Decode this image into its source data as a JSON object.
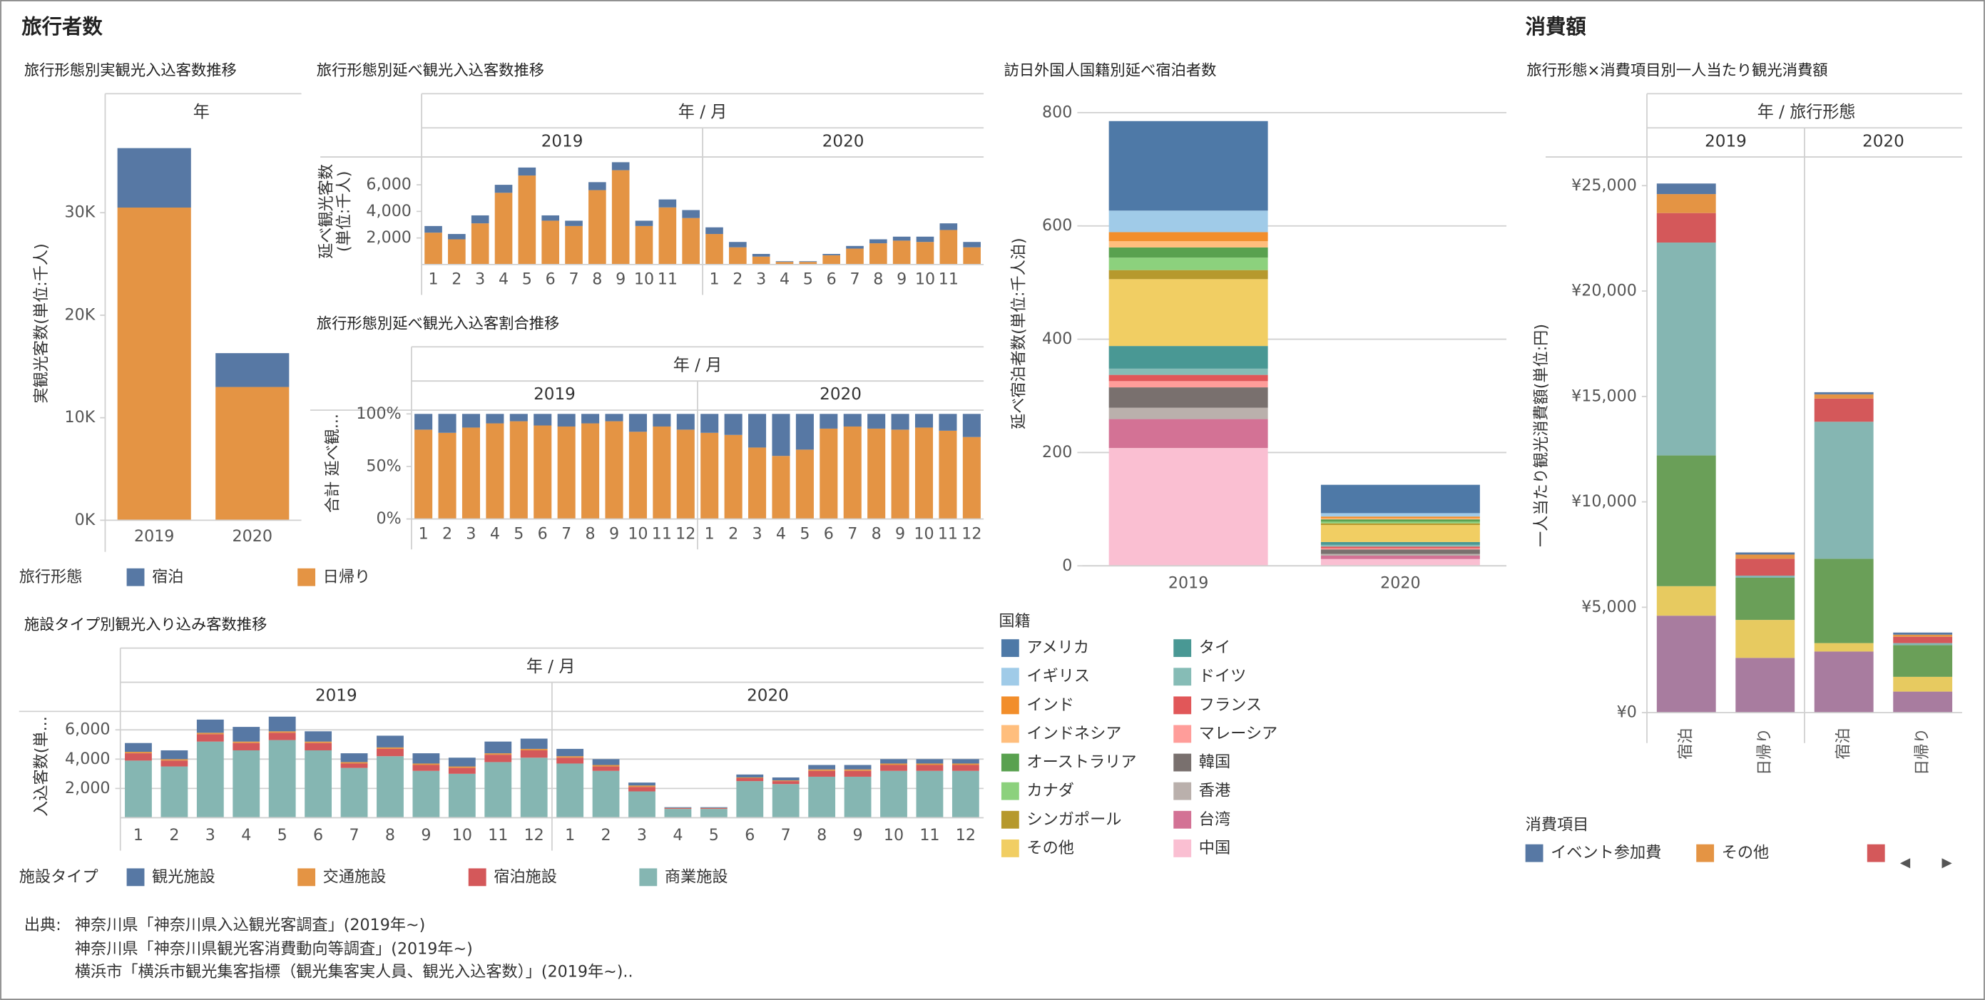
{
  "sections": [
    "旅行者数",
    "消費額"
  ],
  "source": {
    "label": "出典:",
    "lines": [
      "神奈川県「神奈川県入込観光客調査」(2019年~)",
      "神奈川県「神奈川県観光客消費動向等調査」(2019年~)",
      "横浜市「横浜市観光集客指標（観光集客実人員、観光入込客数）」(2019年~).."
    ]
  },
  "chart_data": [
    {
      "type": "bar",
      "stacked": true,
      "title": "旅行形態別実観光入込客数推移",
      "header": "年",
      "y_label": "実観光客数(単位:千人)",
      "categories": [
        "2019",
        "2020"
      ],
      "legend_title": "旅行形態",
      "series": [
        {
          "name": "宿泊",
          "color": "#5778a4",
          "values": [
            5800,
            3300
          ]
        },
        {
          "name": "日帰り",
          "color": "#e49444",
          "values": [
            30500,
            13000
          ]
        }
      ],
      "ylim": [
        0,
        38400
      ],
      "yticks": [
        {
          "value": 0,
          "label": "0K"
        },
        {
          "value": 10000,
          "label": "10K"
        },
        {
          "value": 20000,
          "label": "20K"
        },
        {
          "value": 30000,
          "label": "30K"
        }
      ]
    },
    {
      "type": "bar",
      "stacked": true,
      "title": "旅行形態別延べ観光入込客数推移",
      "header": "年 / 月",
      "y_label": [
        "延べ観光客数",
        "(単位:千人)"
      ],
      "groups": [
        "2019",
        "2020"
      ],
      "categories": [
        "1",
        "2",
        "3",
        "4",
        "5",
        "6",
        "7",
        "8",
        "9",
        "10",
        "11",
        null,
        "1",
        "2",
        "3",
        "4",
        "5",
        "6",
        "7",
        "8",
        "9",
        "10",
        "11",
        null
      ],
      "series": [
        {
          "name": "宿泊",
          "color": "#5778a4",
          "values": [
            500,
            400,
            600,
            600,
            600,
            400,
            400,
            600,
            600,
            400,
            600,
            600,
            500,
            400,
            200,
            50,
            50,
            100,
            200,
            300,
            300,
            400,
            500,
            400
          ]
        },
        {
          "name": "日帰り",
          "color": "#e49444",
          "values": [
            2400,
            1900,
            3100,
            5400,
            6700,
            3300,
            2900,
            5600,
            7100,
            2900,
            4300,
            3500,
            2300,
            1300,
            600,
            200,
            200,
            700,
            1200,
            1600,
            1800,
            1700,
            2600,
            1300
          ]
        }
      ],
      "ylim": [
        0,
        8000
      ],
      "yticks": [
        {
          "value": 2000,
          "label": "2,000"
        },
        {
          "value": 4000,
          "label": "4,000"
        },
        {
          "value": 6000,
          "label": "6,000"
        }
      ]
    },
    {
      "type": "bar",
      "stacked": true,
      "title": "旅行形態別延べ観光入込客割合推移",
      "header": "年 / 月",
      "y_label": "合計 延べ観...",
      "groups": [
        "2019",
        "2020"
      ],
      "categories": [
        "1",
        "2",
        "3",
        "4",
        "5",
        "6",
        "7",
        "8",
        "9",
        "10",
        "11",
        "12",
        "1",
        "2",
        "3",
        "4",
        "5",
        "6",
        "7",
        "8",
        "9",
        "10",
        "11",
        "12"
      ],
      "series": [
        {
          "name": "宿泊",
          "color": "#5778a4",
          "values": [
            15,
            18,
            13,
            9,
            7,
            11,
            12,
            9,
            7,
            17,
            12,
            15,
            18,
            20,
            32,
            40,
            34,
            14,
            12,
            14,
            15,
            13,
            16,
            22
          ]
        },
        {
          "name": "日帰り",
          "color": "#e49444",
          "values": [
            85,
            82,
            87,
            91,
            93,
            89,
            88,
            91,
            93,
            83,
            88,
            85,
            82,
            80,
            68,
            60,
            66,
            86,
            88,
            86,
            85,
            87,
            84,
            78
          ]
        }
      ],
      "ylim": [
        0,
        106
      ],
      "yticks": [
        {
          "value": 0,
          "label": "0%"
        },
        {
          "value": 50,
          "label": "50%"
        },
        {
          "value": 100,
          "label": "100%"
        }
      ]
    },
    {
      "type": "bar",
      "stacked": true,
      "title": "施設タイプ別観光入り込み客数推移",
      "header": "年 / 月",
      "y_label": "入込客数(単...",
      "groups": [
        "2019",
        "2020"
      ],
      "categories": [
        "1",
        "2",
        "3",
        "4",
        "5",
        "6",
        "7",
        "8",
        "9",
        "10",
        "11",
        "12",
        "1",
        "2",
        "3",
        "4",
        "5",
        "6",
        "7",
        "8",
        "9",
        "10",
        "11",
        "12"
      ],
      "legend_title": "施設タイプ",
      "series": [
        {
          "name": "観光施設",
          "color": "#5778a4",
          "values": [
            600,
            600,
            900,
            1000,
            1000,
            700,
            600,
            800,
            700,
            600,
            800,
            700,
            500,
            400,
            200,
            50,
            50,
            200,
            200,
            300,
            300,
            300,
            300,
            300
          ]
        },
        {
          "name": "交通施設",
          "color": "#e49444",
          "values": [
            100,
            100,
            100,
            100,
            100,
            100,
            100,
            100,
            100,
            100,
            100,
            100,
            100,
            100,
            100,
            20,
            20,
            50,
            50,
            100,
            100,
            100,
            100,
            100
          ]
        },
        {
          "name": "宿泊施設",
          "color": "#d4585a",
          "values": [
            500,
            400,
            500,
            500,
            500,
            500,
            300,
            500,
            400,
            400,
            500,
            500,
            400,
            300,
            300,
            50,
            50,
            200,
            200,
            400,
            400,
            400,
            400,
            400
          ]
        },
        {
          "name": "商業施設",
          "color": "#85b6b2",
          "values": [
            3900,
            3500,
            5200,
            4600,
            5300,
            4600,
            3400,
            4200,
            3200,
            3000,
            3800,
            4100,
            3700,
            3200,
            1800,
            600,
            600,
            2500,
            2300,
            2800,
            2800,
            3200,
            3200,
            3200
          ]
        }
      ],
      "ylim": [
        0,
        7000
      ],
      "yticks": [
        {
          "value": 2000,
          "label": "2,000"
        },
        {
          "value": 4000,
          "label": "4,000"
        },
        {
          "value": 6000,
          "label": "6,000"
        }
      ],
      "grid": true
    },
    {
      "type": "bar",
      "stacked": true,
      "title": "訪日外国人国籍別延べ宿泊者数",
      "y_label": "延べ宿泊者数(単位:千人泊)",
      "categories": [
        "2019",
        "2020"
      ],
      "legend_title": "国籍",
      "series": [
        {
          "name": "アメリカ",
          "color": "#4e79a7",
          "values": [
            158,
            50
          ]
        },
        {
          "name": "イギリス",
          "color": "#a0cbe8",
          "values": [
            38,
            6
          ]
        },
        {
          "name": "インド",
          "color": "#f28e2b",
          "values": [
            16,
            3
          ]
        },
        {
          "name": "インドネシア",
          "color": "#ffbe7d",
          "values": [
            11,
            2
          ]
        },
        {
          "name": "オーストラリア",
          "color": "#59a14f",
          "values": [
            18,
            4
          ]
        },
        {
          "name": "カナダ",
          "color": "#8cd17d",
          "values": [
            22,
            3
          ]
        },
        {
          "name": "シンガポール",
          "color": "#b6992d",
          "values": [
            16,
            3
          ]
        },
        {
          "name": "その他",
          "color": "#f1ce63",
          "values": [
            118,
            30
          ]
        },
        {
          "name": "タイ",
          "color": "#499894",
          "values": [
            40,
            5
          ]
        },
        {
          "name": "ドイツ",
          "color": "#86bcb6",
          "values": [
            11,
            3
          ]
        },
        {
          "name": "フランス",
          "color": "#e15759",
          "values": [
            11,
            3
          ]
        },
        {
          "name": "マレーシア",
          "color": "#ff9d9a",
          "values": [
            11,
            2
          ]
        },
        {
          "name": "韓国",
          "color": "#79706e",
          "values": [
            36,
            8
          ]
        },
        {
          "name": "香港",
          "color": "#bab0ac",
          "values": [
            20,
            3
          ]
        },
        {
          "name": "台湾",
          "color": "#d37295",
          "values": [
            51,
            6
          ]
        },
        {
          "name": "中国",
          "color": "#fabfd2",
          "values": [
            208,
            12
          ]
        }
      ],
      "ylim": [
        0,
        820
      ],
      "yticks": [
        0,
        200,
        400,
        600,
        800
      ],
      "grid": true
    },
    {
      "type": "bar",
      "stacked": true,
      "title": "旅行形態×消費項目別一人当たり観光消費額",
      "header": "年 / 旅行形態",
      "y_label": "一人当たり観光消費額(単位:円)",
      "groups": [
        "2019",
        "2020"
      ],
      "categories": [
        "宿泊",
        "日帰り",
        "宿泊",
        "日帰り"
      ],
      "legend_title": "消費項目",
      "series": [
        {
          "name": "イベント参加費",
          "color": "#5778a4",
          "values": [
            500,
            100,
            100,
            100
          ]
        },
        {
          "name": "その他",
          "color": "#e49444",
          "values": [
            900,
            200,
            200,
            100
          ]
        },
        {
          "name": null,
          "color": "#d4585a",
          "values": [
            1400,
            800,
            1100,
            300
          ]
        },
        {
          "name": null,
          "color": "#85b6b2",
          "values": [
            10100,
            100,
            6500,
            100
          ]
        },
        {
          "name": null,
          "color": "#6a9f58",
          "values": [
            6200,
            2000,
            4000,
            1500
          ]
        },
        {
          "name": null,
          "color": "#e7ca60",
          "values": [
            1400,
            1800,
            400,
            700
          ]
        },
        {
          "name": null,
          "color": "#a87c9f",
          "values": [
            4600,
            2600,
            2900,
            1000
          ]
        }
      ],
      "ylim": [
        0,
        26300
      ],
      "yticks": [
        {
          "value": 0,
          "label": "¥0"
        },
        {
          "value": 5000,
          "label": "¥5,000"
        },
        {
          "value": 10000,
          "label": "¥10,000"
        },
        {
          "value": 15000,
          "label": "¥15,000"
        },
        {
          "value": 20000,
          "label": "¥20,000"
        },
        {
          "value": 25000,
          "label": "¥25,000"
        }
      ]
    }
  ]
}
